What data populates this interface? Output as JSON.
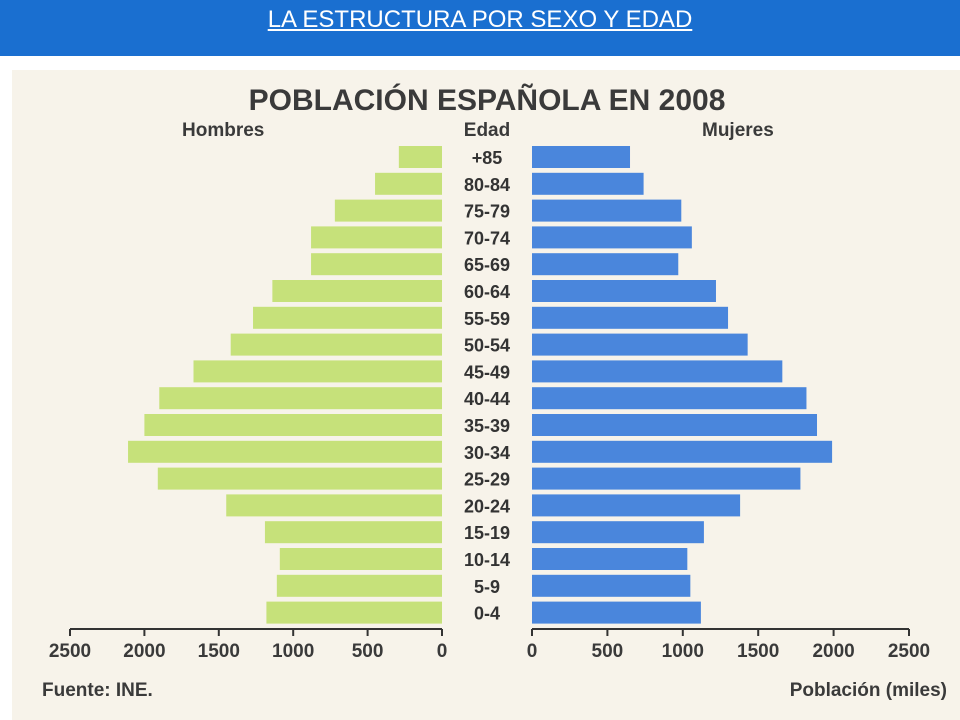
{
  "slide": {
    "title": "LA ESTRUCTURA POR SEXO Y EDAD",
    "header_color": "#1a6fd0"
  },
  "chart_data": {
    "type": "bar",
    "subtype": "population-pyramid",
    "title": "POBLACIÓN ESPAÑOLA EN 2008",
    "left_label": "Hombres",
    "center_label": "Edad",
    "right_label": "Mujeres",
    "source": "Fuente: INE.",
    "xlabel": "Población (miles)",
    "xlim": [
      0,
      2500
    ],
    "ticks_left": [
      "2500",
      "2000",
      "1500",
      "1000",
      "500",
      "0"
    ],
    "ticks_right": [
      "0",
      "500",
      "1000",
      "1500",
      "2000",
      "2500"
    ],
    "tick_values": [
      0,
      500,
      1000,
      1500,
      2000,
      2500
    ],
    "categories": [
      "+85",
      "80-84",
      "75-79",
      "70-74",
      "65-69",
      "60-64",
      "55-59",
      "50-54",
      "45-49",
      "40-44",
      "35-39",
      "30-34",
      "25-29",
      "20-24",
      "15-19",
      "10-14",
      "5-9",
      "0-4"
    ],
    "series": [
      {
        "name": "Hombres",
        "color": "#c6e17a",
        "values": [
          290,
          450,
          720,
          880,
          880,
          1140,
          1270,
          1420,
          1670,
          1900,
          2000,
          2110,
          1910,
          1450,
          1190,
          1090,
          1110,
          1180
        ]
      },
      {
        "name": "Mujeres",
        "color": "#4a86dc",
        "values": [
          650,
          740,
          990,
          1060,
          970,
          1220,
          1300,
          1430,
          1660,
          1820,
          1890,
          1990,
          1780,
          1380,
          1140,
          1030,
          1050,
          1120
        ]
      }
    ],
    "grid": false,
    "legend": "none"
  }
}
